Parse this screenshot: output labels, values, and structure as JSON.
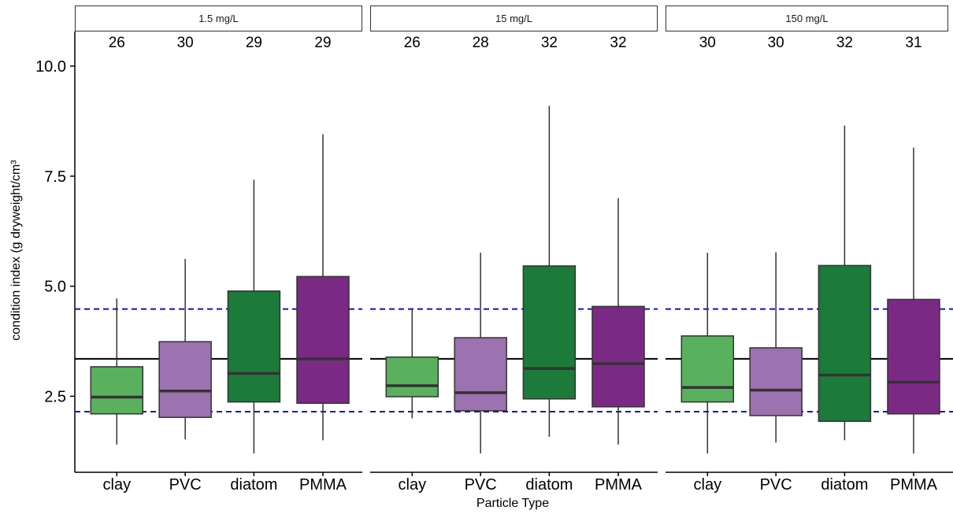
{
  "chart_data": {
    "type": "box",
    "xlabel": "Particle Type",
    "ylabel": "condition index (g dryweight/cm³",
    "ylim": [
      1.0,
      10.8
    ],
    "yticks": [
      2.5,
      5.0,
      7.5,
      10.0
    ],
    "ytick_labels": [
      "2.5",
      "5.0",
      "7.5",
      "10.0"
    ],
    "categories": [
      "clay",
      "PVC",
      "diatom",
      "PMMA"
    ],
    "category_colors": {
      "clay": "#59b15e",
      "PVC": "#9c72b0",
      "diatom": "#1c7a3a",
      "PMMA": "#7a2a85"
    },
    "reference_lines": {
      "solid": 3.35,
      "dashed": [
        2.15,
        4.48
      ],
      "solid_color": "#000000",
      "dashed_color": "#1010cc"
    },
    "panels": [
      {
        "label": "1.5 mg/L",
        "boxes": [
          {
            "category": "clay",
            "n": "26",
            "min": 1.4,
            "q1": 2.1,
            "median": 2.48,
            "q3": 3.17,
            "max": 4.72
          },
          {
            "category": "PVC",
            "n": "30",
            "min": 1.52,
            "q1": 2.02,
            "median": 2.62,
            "q3": 3.74,
            "max": 5.62
          },
          {
            "category": "diatom",
            "n": "29",
            "min": 1.2,
            "q1": 2.37,
            "median": 3.02,
            "q3": 4.89,
            "max": 7.42
          },
          {
            "category": "PMMA",
            "n": "29",
            "min": 1.5,
            "q1": 2.34,
            "median": 3.35,
            "q3": 5.22,
            "max": 8.45
          }
        ]
      },
      {
        "label": "15 mg/L",
        "boxes": [
          {
            "category": "clay",
            "n": "26",
            "min": 2.0,
            "q1": 2.49,
            "median": 2.74,
            "q3": 3.39,
            "max": 4.5
          },
          {
            "category": "PVC",
            "n": "28",
            "min": 1.2,
            "q1": 2.17,
            "median": 2.58,
            "q3": 3.83,
            "max": 5.76
          },
          {
            "category": "diatom",
            "n": "32",
            "min": 1.58,
            "q1": 2.44,
            "median": 3.13,
            "q3": 5.46,
            "max": 9.1
          },
          {
            "category": "PMMA",
            "n": "32",
            "min": 1.4,
            "q1": 2.26,
            "median": 3.24,
            "q3": 4.54,
            "max": 7.0
          }
        ]
      },
      {
        "label": "150 mg/L",
        "boxes": [
          {
            "category": "clay",
            "n": "30",
            "min": 1.2,
            "q1": 2.37,
            "median": 2.7,
            "q3": 3.87,
            "max": 5.76
          },
          {
            "category": "PVC",
            "n": "30",
            "min": 1.45,
            "q1": 2.06,
            "median": 2.64,
            "q3": 3.6,
            "max": 5.77
          },
          {
            "category": "diatom",
            "n": "32",
            "min": 1.5,
            "q1": 1.93,
            "median": 2.98,
            "q3": 5.47,
            "max": 8.65
          },
          {
            "category": "PMMA",
            "n": "31",
            "min": 1.2,
            "q1": 2.1,
            "median": 2.82,
            "q3": 4.7,
            "max": 8.15
          }
        ]
      }
    ]
  }
}
